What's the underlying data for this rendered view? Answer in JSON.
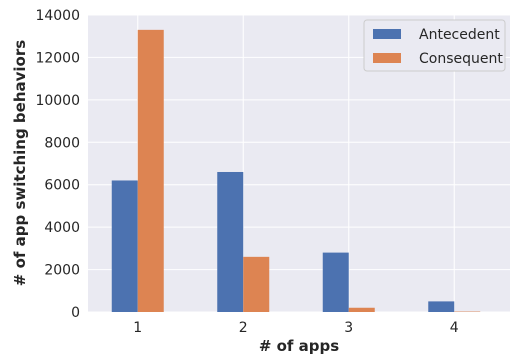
{
  "chart_data": {
    "type": "bar",
    "title": "",
    "xlabel": "# of apps",
    "ylabel": "# of app switching behaviors",
    "categories": [
      "1",
      "2",
      "3",
      "4"
    ],
    "series": [
      {
        "name": "Antecedent",
        "values": [
          6200,
          6600,
          2800,
          500
        ],
        "color": "#4c72b0"
      },
      {
        "name": "Consequent",
        "values": [
          13300,
          2600,
          200,
          20
        ],
        "color": "#dd8452"
      }
    ],
    "ylim": [
      0,
      14000
    ],
    "yticks": [
      "0",
      "2000",
      "4000",
      "6000",
      "8000",
      "10000",
      "12000",
      "14000"
    ],
    "grid": true,
    "legend_position": "top-right",
    "background_color": "#eaeaf2"
  }
}
